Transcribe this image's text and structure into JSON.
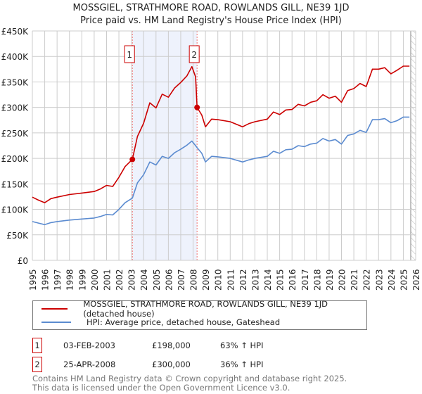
{
  "title": "MOSSGIEL, STRATHMORE ROAD, ROWLANDS GILL, NE39 1JD",
  "subtitle": "Price paid vs. HM Land Registry's House Price Index (HPI)",
  "colors": {
    "property": "#cc0000",
    "hpi": "#5b8bd0",
    "shade": "#eef2fc",
    "marker_border": "#cc0000"
  },
  "chart_data": {
    "type": "line",
    "title": "MOSSGIEL, STRATHMORE ROAD, ROWLANDS GILL, NE39 1JD",
    "xlim": [
      1995,
      2026
    ],
    "ylim": [
      0,
      450000
    ],
    "x_ticks": [
      "1995",
      "1996",
      "1997",
      "1998",
      "1999",
      "2000",
      "2001",
      "2002",
      "2003",
      "2004",
      "2005",
      "2006",
      "2007",
      "2008",
      "2009",
      "2010",
      "2011",
      "2012",
      "2013",
      "2014",
      "2015",
      "2016",
      "2017",
      "2018",
      "2019",
      "2020",
      "2021",
      "2022",
      "2023",
      "2024",
      "2025",
      "2026"
    ],
    "y_ticks": [
      {
        "value": 0,
        "label": "£0"
      },
      {
        "value": 50000,
        "label": "£50K"
      },
      {
        "value": 100000,
        "label": "£100K"
      },
      {
        "value": 150000,
        "label": "£150K"
      },
      {
        "value": 200000,
        "label": "£200K"
      },
      {
        "value": 250000,
        "label": "£250K"
      },
      {
        "value": 300000,
        "label": "£300K"
      },
      {
        "value": 350000,
        "label": "£350K"
      },
      {
        "value": 400000,
        "label": "£400K"
      },
      {
        "value": 450000,
        "label": "£450K"
      }
    ],
    "grid": true,
    "shaded_range": [
      2003.09,
      2008.32
    ],
    "future_hatch_from": 2025.6,
    "series": [
      {
        "name": "MOSSGIEL, STRATHMORE ROAD, ROWLANDS GILL, NE39 1JD (detached house)",
        "x": [
          1995,
          1995.5,
          1996,
          1996.5,
          1997,
          1998,
          1999,
          2000,
          2000.5,
          2001,
          2001.5,
          2002,
          2002.5,
          2003.09,
          2003.5,
          2004,
          2004.5,
          2005,
          2005.5,
          2006,
          2006.5,
          2007,
          2007.5,
          2007.9,
          2008.2,
          2008.32,
          2008.7,
          2009,
          2009.5,
          2010,
          2011,
          2012,
          2012.5,
          2013,
          2014,
          2014.5,
          2015,
          2015.5,
          2016,
          2016.5,
          2017,
          2017.5,
          2018,
          2018.5,
          2019,
          2019.5,
          2020,
          2020.5,
          2021,
          2021.5,
          2022,
          2022.5,
          2023,
          2023.5,
          2024,
          2024.5,
          2025,
          2025.5
        ],
        "values": [
          124000,
          118000,
          113000,
          121000,
          124000,
          129000,
          132000,
          135000,
          140000,
          147000,
          145000,
          163000,
          184000,
          198000,
          243000,
          269000,
          309000,
          299000,
          326000,
          320000,
          338000,
          349000,
          362000,
          380000,
          360000,
          300000,
          285000,
          262000,
          277000,
          276000,
          272000,
          262000,
          268000,
          272000,
          277000,
          291000,
          286000,
          295000,
          296000,
          306000,
          303000,
          310000,
          313000,
          325000,
          318000,
          322000,
          310000,
          333000,
          337000,
          347000,
          341000,
          375000,
          375000,
          378000,
          366000,
          373000,
          381000,
          381000
        ]
      },
      {
        "name": "HPI: Average price, detached house, Gateshead",
        "x": [
          1995,
          1995.5,
          1996,
          1996.5,
          1997,
          1998,
          1999,
          2000,
          2000.5,
          2001,
          2001.5,
          2002,
          2002.5,
          2003.09,
          2003.5,
          2004,
          2004.5,
          2005,
          2005.5,
          2006,
          2006.5,
          2007,
          2007.5,
          2007.9,
          2008.2,
          2008.32,
          2008.7,
          2009,
          2009.5,
          2010,
          2011,
          2012,
          2012.5,
          2013,
          2014,
          2014.5,
          2015,
          2015.5,
          2016,
          2016.5,
          2017,
          2017.5,
          2018,
          2018.5,
          2019,
          2019.5,
          2020,
          2020.5,
          2021,
          2021.5,
          2022,
          2022.5,
          2023,
          2023.5,
          2024,
          2024.5,
          2025,
          2025.5
        ],
        "values": [
          76000,
          73000,
          70000,
          74000,
          76000,
          79000,
          81000,
          83000,
          86000,
          90000,
          89000,
          100000,
          113000,
          122000,
          152000,
          168000,
          193000,
          187000,
          204000,
          200000,
          211000,
          218000,
          226000,
          234000,
          225000,
          221000,
          210000,
          193000,
          204000,
          203000,
          200000,
          193000,
          197000,
          200000,
          204000,
          214000,
          210000,
          217000,
          218000,
          225000,
          223000,
          228000,
          230000,
          239000,
          234000,
          237000,
          228000,
          245000,
          248000,
          255000,
          251000,
          276000,
          276000,
          278000,
          270000,
          274000,
          281000,
          281000
        ]
      }
    ],
    "sales": [
      {
        "label": "1",
        "x": 2003.09,
        "value": 198000
      },
      {
        "label": "2",
        "x": 2008.32,
        "value": 300000
      }
    ]
  },
  "legend": {
    "property": "MOSSGIEL, STRATHMORE ROAD, ROWLANDS GILL, NE39 1JD (detached house)",
    "hpi": "HPI: Average price, detached house, Gateshead"
  },
  "transactions": [
    {
      "num": "1",
      "date": "03-FEB-2003",
      "price": "£198,000",
      "hpi": "63% ↑ HPI"
    },
    {
      "num": "2",
      "date": "25-APR-2008",
      "price": "£300,000",
      "hpi": "36% ↑ HPI"
    }
  ],
  "footer": {
    "line1": "Contains HM Land Registry data © Crown copyright and database right 2025.",
    "line2": "This data is licensed under the Open Government Licence v3.0."
  }
}
